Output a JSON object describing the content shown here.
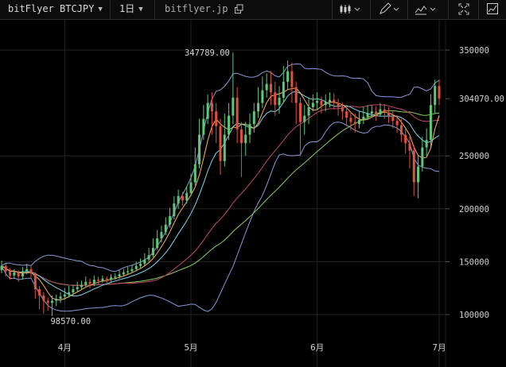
{
  "toolbar": {
    "symbol": "bitFlyer BTCJPY",
    "interval": "1日",
    "site": "bitflyer.jp",
    "icons": [
      "chevron-down-icon",
      "external-link-icon",
      "candlestick-type-icon",
      "pencil-icon",
      "indicator-icon",
      "fullscreen-icon",
      "chart-settings-icon"
    ]
  },
  "chart_data": {
    "type": "line",
    "title": "",
    "price_labels": [
      "350000",
      "304070.00",
      "250000",
      "200000",
      "150000",
      "100000"
    ],
    "y_ticks": [
      350000,
      304070,
      250000,
      200000,
      150000,
      100000
    ],
    "ylim": [
      82000,
      362000
    ],
    "x_tick_labels": [
      "4月",
      "5月",
      "6月",
      "7月"
    ],
    "x_tick_positions": [
      15,
      45,
      75,
      104
    ],
    "annotations": {
      "high": "347789.00",
      "low": "98570.00"
    },
    "annotation_values": {
      "high": 347789,
      "low": 98570
    },
    "last_price": 304070,
    "colors": {
      "up": "#5ec77a",
      "down": "#e0523c",
      "bb": "#8a97d8",
      "ma_short": "#ffb25c",
      "ma_mid": "#7fd8ee",
      "ma_long": "#c24a6a",
      "ma_longest": "#86d25a",
      "bg": "#000000",
      "grid": "#242424"
    },
    "candles": [
      [
        0,
        142000,
        146000,
        151000,
        139000
      ],
      [
        1,
        146000,
        141000,
        148000,
        136000
      ],
      [
        2,
        141000,
        137000,
        144000,
        133000
      ],
      [
        3,
        137000,
        140000,
        143000,
        134000
      ],
      [
        4,
        140000,
        136000,
        142000,
        131000
      ],
      [
        5,
        136000,
        141000,
        145000,
        133000
      ],
      [
        6,
        141000,
        143000,
        148000,
        138000
      ],
      [
        7,
        143000,
        139000,
        146000,
        135000
      ],
      [
        8,
        139000,
        124000,
        140000,
        115000
      ],
      [
        9,
        124000,
        118000,
        127000,
        105000
      ],
      [
        10,
        118000,
        113000,
        121000,
        101000
      ],
      [
        11,
        113000,
        111000,
        116000,
        104000
      ],
      [
        12,
        111000,
        113000,
        118000,
        98570
      ],
      [
        13,
        113000,
        115000,
        119000,
        108000
      ],
      [
        14,
        115000,
        117000,
        121000,
        111000
      ],
      [
        15,
        117000,
        119000,
        125000,
        114000
      ],
      [
        16,
        119000,
        121000,
        127000,
        116000
      ],
      [
        17,
        121000,
        124000,
        128000,
        118000
      ],
      [
        18,
        124000,
        126000,
        131000,
        121000
      ],
      [
        19,
        126000,
        128000,
        132000,
        124000
      ],
      [
        20,
        128000,
        131000,
        136000,
        126000
      ],
      [
        21,
        131000,
        129000,
        134000,
        125000
      ],
      [
        22,
        129000,
        133000,
        137000,
        127000
      ],
      [
        23,
        133000,
        132000,
        136000,
        129000
      ],
      [
        24,
        132000,
        134000,
        137000,
        130000
      ],
      [
        25,
        134000,
        133000,
        136000,
        130000
      ],
      [
        26,
        133000,
        135000,
        138000,
        131000
      ],
      [
        27,
        135000,
        136000,
        139000,
        133000
      ],
      [
        28,
        136000,
        138000,
        142000,
        134000
      ],
      [
        29,
        138000,
        140000,
        143000,
        136000
      ],
      [
        30,
        140000,
        141000,
        145000,
        138000
      ],
      [
        31,
        141000,
        143000,
        147000,
        139000
      ],
      [
        32,
        143000,
        146000,
        150000,
        141000
      ],
      [
        33,
        146000,
        148000,
        153000,
        144000
      ],
      [
        34,
        148000,
        152000,
        158000,
        146000
      ],
      [
        35,
        152000,
        156000,
        163000,
        150000
      ],
      [
        36,
        156000,
        163000,
        172000,
        154000
      ],
      [
        37,
        163000,
        172000,
        180000,
        161000
      ],
      [
        38,
        172000,
        178000,
        184000,
        168000
      ],
      [
        39,
        178000,
        185000,
        192000,
        175000
      ],
      [
        40,
        185000,
        193000,
        201000,
        182000
      ],
      [
        41,
        193000,
        205000,
        212000,
        190000
      ],
      [
        42,
        205000,
        212000,
        218000,
        200000
      ],
      [
        43,
        212000,
        208000,
        216000,
        203000
      ],
      [
        44,
        208000,
        215000,
        221000,
        205000
      ],
      [
        45,
        215000,
        225000,
        233000,
        212000
      ],
      [
        46,
        225000,
        242000,
        258000,
        222000
      ],
      [
        47,
        242000,
        270000,
        285000,
        238000
      ],
      [
        48,
        270000,
        285000,
        298000,
        265000
      ],
      [
        49,
        285000,
        300000,
        308000,
        280000
      ],
      [
        50,
        300000,
        292000,
        310000,
        270000
      ],
      [
        51,
        292000,
        278000,
        300000,
        262000
      ],
      [
        52,
        278000,
        245000,
        285000,
        232000
      ],
      [
        53,
        245000,
        270000,
        290000,
        240000
      ],
      [
        54,
        270000,
        288000,
        300000,
        265000
      ],
      [
        55,
        288000,
        305000,
        347789,
        280000
      ],
      [
        56,
        305000,
        275000,
        315000,
        262000
      ],
      [
        57,
        275000,
        262000,
        282000,
        230000
      ],
      [
        58,
        262000,
        270000,
        282000,
        250000
      ],
      [
        59,
        270000,
        280000,
        290000,
        262000
      ],
      [
        60,
        280000,
        292000,
        300000,
        272000
      ],
      [
        61,
        292000,
        300000,
        315000,
        286000
      ],
      [
        62,
        300000,
        312000,
        325000,
        295000
      ],
      [
        63,
        312000,
        318000,
        328000,
        305000
      ],
      [
        64,
        318000,
        310000,
        330000,
        298000
      ],
      [
        65,
        310000,
        298000,
        320000,
        288000
      ],
      [
        66,
        298000,
        305000,
        316000,
        290000
      ],
      [
        67,
        305000,
        320000,
        335000,
        300000
      ],
      [
        68,
        320000,
        330000,
        340000,
        312000
      ],
      [
        69,
        330000,
        315000,
        338000,
        300000
      ],
      [
        70,
        315000,
        300000,
        320000,
        280000
      ],
      [
        71,
        300000,
        282000,
        305000,
        250000
      ],
      [
        72,
        282000,
        288000,
        298000,
        270000
      ],
      [
        73,
        288000,
        296000,
        305000,
        280000
      ],
      [
        74,
        296000,
        300000,
        308000,
        292000
      ],
      [
        75,
        300000,
        302000,
        310000,
        294000
      ],
      [
        76,
        302000,
        298000,
        306000,
        290000
      ],
      [
        77,
        298000,
        301000,
        308000,
        292000
      ],
      [
        78,
        301000,
        303000,
        310000,
        296000
      ],
      [
        79,
        303000,
        300000,
        309000,
        294000
      ],
      [
        80,
        300000,
        296000,
        304000,
        288000
      ],
      [
        81,
        296000,
        292000,
        300000,
        284000
      ],
      [
        82,
        292000,
        286000,
        296000,
        278000
      ],
      [
        83,
        286000,
        282000,
        292000,
        274000
      ],
      [
        84,
        282000,
        280000,
        290000,
        272000
      ],
      [
        85,
        280000,
        284000,
        292000,
        276000
      ],
      [
        86,
        284000,
        287000,
        296000,
        280000
      ],
      [
        87,
        287000,
        290000,
        298000,
        284000
      ],
      [
        88,
        290000,
        292000,
        298000,
        286000
      ],
      [
        89,
        292000,
        289000,
        297000,
        283000
      ],
      [
        90,
        289000,
        294000,
        300000,
        287000
      ],
      [
        91,
        294000,
        291000,
        299000,
        285000
      ],
      [
        92,
        291000,
        287000,
        296000,
        281000
      ],
      [
        93,
        287000,
        283000,
        292000,
        276000
      ],
      [
        94,
        283000,
        279000,
        288000,
        272000
      ],
      [
        95,
        279000,
        270000,
        285000,
        263000
      ],
      [
        96,
        270000,
        262000,
        276000,
        252000
      ],
      [
        97,
        262000,
        255000,
        268000,
        238000
      ],
      [
        98,
        255000,
        225000,
        260000,
        212000
      ],
      [
        99,
        225000,
        240000,
        250000,
        210000
      ],
      [
        100,
        240000,
        258000,
        268000,
        235000
      ],
      [
        101,
        258000,
        265000,
        276000,
        250000
      ],
      [
        102,
        265000,
        298000,
        308000,
        258000
      ],
      [
        103,
        298000,
        316000,
        322000,
        290000
      ],
      [
        104,
        316000,
        304070,
        322000,
        298000
      ]
    ]
  }
}
